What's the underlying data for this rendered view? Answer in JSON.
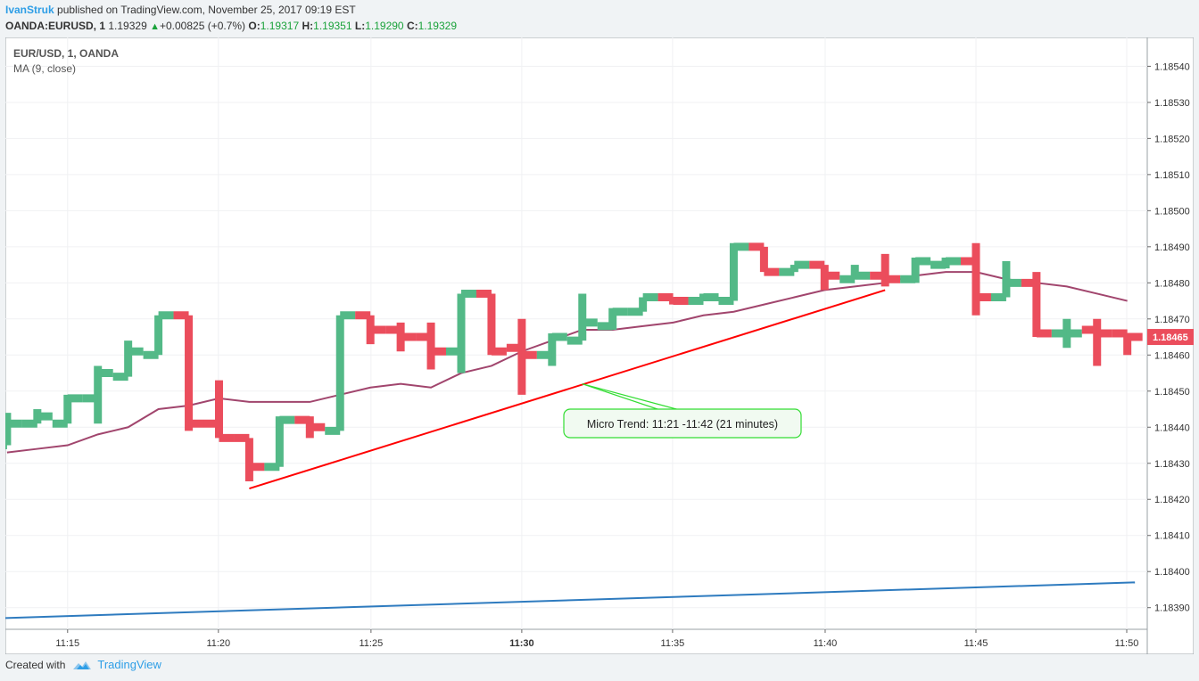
{
  "header": {
    "author": "IvanStruk",
    "published": "published on TradingView.com, November 25, 2017 09:19 EST",
    "symbol": "OANDA:EURUSD, 1",
    "last": "1.19329",
    "change": "+0.00825 (+0.7%)",
    "o_label": "O:",
    "o_value": "1.19317",
    "h_label": "H:",
    "h_value": "1.19351",
    "l_label": "L:",
    "l_value": "1.19290",
    "c_label": "C:",
    "c_value": "1.19329"
  },
  "legend": {
    "series_title": "EUR/USD, 1, OANDA",
    "indicator": "MA (9, close)"
  },
  "footer": {
    "created_with": "Created with",
    "brand": "TradingView"
  },
  "colors": {
    "up": "#53b987",
    "down": "#eb4d5c",
    "ma": "#a1456d",
    "trend": "#ff0000",
    "blue_line": "#2e7bbf",
    "callout": "#33dd33"
  },
  "chart_data": {
    "type": "ohlc",
    "x_ticks": [
      {
        "t": 11.25,
        "label": "11:15"
      },
      {
        "t": 11.333,
        "label": "11:20"
      },
      {
        "t": 11.417,
        "label": "11:25"
      },
      {
        "t": 11.5,
        "label": "11:30"
      },
      {
        "t": 11.583,
        "label": "11:35"
      },
      {
        "t": 11.667,
        "label": "11:40"
      },
      {
        "t": 11.75,
        "label": "11:45"
      },
      {
        "t": 11.833,
        "label": "11:50"
      }
    ],
    "y_ticks": [
      "1.18540",
      "1.18530",
      "1.18520",
      "1.18510",
      "1.18500",
      "1.18490",
      "1.18480",
      "1.18470",
      "1.18460",
      "1.18450",
      "1.18440",
      "1.18430",
      "1.18420",
      "1.18410",
      "1.18400",
      "1.18390"
    ],
    "ylim": [
      1.18384,
      1.18548
    ],
    "current_price": "1.18465",
    "bars": [
      {
        "m": 13,
        "o": 1.18435,
        "h": 1.18444,
        "l": 1.18435,
        "c": 1.18441
      },
      {
        "m": 14,
        "o": 1.18441,
        "h": 1.18445,
        "l": 1.18441,
        "c": 1.18443
      },
      {
        "m": 15,
        "o": 1.18441,
        "h": 1.18449,
        "l": 1.18441,
        "c": 1.18448
      },
      {
        "m": 16,
        "o": 1.18448,
        "h": 1.18457,
        "l": 1.18441,
        "c": 1.18455
      },
      {
        "m": 17,
        "o": 1.18454,
        "h": 1.18464,
        "l": 1.18454,
        "c": 1.18461
      },
      {
        "m": 18,
        "o": 1.1846,
        "h": 1.18471,
        "l": 1.1846,
        "c": 1.18471
      },
      {
        "m": 19,
        "o": 1.18471,
        "h": 1.18471,
        "l": 1.18439,
        "c": 1.18441
      },
      {
        "m": 20,
        "o": 1.18441,
        "h": 1.18453,
        "l": 1.18437,
        "c": 1.18437
      },
      {
        "m": 21,
        "o": 1.18437,
        "h": 1.18437,
        "l": 1.18425,
        "c": 1.18429
      },
      {
        "m": 22,
        "o": 1.18429,
        "h": 1.18443,
        "l": 1.18429,
        "c": 1.18442
      },
      {
        "m": 23,
        "o": 1.18442,
        "h": 1.18443,
        "l": 1.18437,
        "c": 1.1844
      },
      {
        "m": 24,
        "o": 1.18439,
        "h": 1.18471,
        "l": 1.18439,
        "c": 1.18471
      },
      {
        "m": 25,
        "o": 1.18471,
        "h": 1.18471,
        "l": 1.18463,
        "c": 1.18467
      },
      {
        "m": 26,
        "o": 1.18467,
        "h": 1.18469,
        "l": 1.18461,
        "c": 1.18465
      },
      {
        "m": 27,
        "o": 1.18465,
        "h": 1.18469,
        "l": 1.18456,
        "c": 1.18461
      },
      {
        "m": 28,
        "o": 1.18461,
        "h": 1.18477,
        "l": 1.18455,
        "c": 1.18477
      },
      {
        "m": 29,
        "o": 1.18477,
        "h": 1.18477,
        "l": 1.1846,
        "c": 1.18461
      },
      {
        "m": 30,
        "o": 1.18462,
        "h": 1.1847,
        "l": 1.18449,
        "c": 1.1846
      },
      {
        "m": 31,
        "o": 1.1846,
        "h": 1.18466,
        "l": 1.18457,
        "c": 1.18465
      },
      {
        "m": 32,
        "o": 1.18464,
        "h": 1.18477,
        "l": 1.18464,
        "c": 1.18469
      },
      {
        "m": 33,
        "o": 1.18468,
        "h": 1.18473,
        "l": 1.18467,
        "c": 1.18472
      },
      {
        "m": 34,
        "o": 1.18472,
        "h": 1.18476,
        "l": 1.18472,
        "c": 1.18476
      },
      {
        "m": 35,
        "o": 1.18476,
        "h": 1.18476,
        "l": 1.18474,
        "c": 1.18475
      },
      {
        "m": 36,
        "o": 1.18475,
        "h": 1.18477,
        "l": 1.18475,
        "c": 1.18476
      },
      {
        "m": 37,
        "o": 1.18475,
        "h": 1.18491,
        "l": 1.18475,
        "c": 1.1849
      },
      {
        "m": 38,
        "o": 1.1849,
        "h": 1.1849,
        "l": 1.18483,
        "c": 1.18483
      },
      {
        "m": 39,
        "o": 1.18483,
        "h": 1.18485,
        "l": 1.18483,
        "c": 1.18485
      },
      {
        "m": 40,
        "o": 1.18485,
        "h": 1.18485,
        "l": 1.18478,
        "c": 1.18482
      },
      {
        "m": 41,
        "o": 1.18481,
        "h": 1.18485,
        "l": 1.18481,
        "c": 1.18482
      },
      {
        "m": 42,
        "o": 1.18482,
        "h": 1.18488,
        "l": 1.18479,
        "c": 1.18481
      },
      {
        "m": 43,
        "o": 1.18481,
        "h": 1.18487,
        "l": 1.1848,
        "c": 1.18486
      },
      {
        "m": 44,
        "o": 1.18485,
        "h": 1.18487,
        "l": 1.18484,
        "c": 1.18486
      },
      {
        "m": 45,
        "o": 1.18486,
        "h": 1.18491,
        "l": 1.18471,
        "c": 1.18476
      },
      {
        "m": 46,
        "o": 1.18476,
        "h": 1.18486,
        "l": 1.18476,
        "c": 1.1848
      },
      {
        "m": 47,
        "o": 1.1848,
        "h": 1.18483,
        "l": 1.18465,
        "c": 1.18466
      },
      {
        "m": 48,
        "o": 1.18466,
        "h": 1.1847,
        "l": 1.18462,
        "c": 1.18466
      },
      {
        "m": 49,
        "o": 1.18467,
        "h": 1.1847,
        "l": 1.18457,
        "c": 1.18466
      },
      {
        "m": 50,
        "o": 1.18466,
        "h": 1.18466,
        "l": 1.1846,
        "c": 1.18465
      }
    ],
    "ma": [
      [
        13,
        1.18433
      ],
      [
        14,
        1.18434
      ],
      [
        15,
        1.18435
      ],
      [
        16,
        1.18438
      ],
      [
        17,
        1.1844
      ],
      [
        18,
        1.18445
      ],
      [
        19,
        1.18446
      ],
      [
        20,
        1.18448
      ],
      [
        21,
        1.18447
      ],
      [
        22,
        1.18447
      ],
      [
        23,
        1.18447
      ],
      [
        24,
        1.18449
      ],
      [
        25,
        1.18451
      ],
      [
        26,
        1.18452
      ],
      [
        27,
        1.18451
      ],
      [
        28,
        1.18455
      ],
      [
        29,
        1.18457
      ],
      [
        30,
        1.18461
      ],
      [
        31,
        1.18464
      ],
      [
        32,
        1.18467
      ],
      [
        33,
        1.18467
      ],
      [
        34,
        1.18468
      ],
      [
        35,
        1.18469
      ],
      [
        36,
        1.18471
      ],
      [
        37,
        1.18472
      ],
      [
        38,
        1.18474
      ],
      [
        39,
        1.18476
      ],
      [
        40,
        1.18478
      ],
      [
        41,
        1.18479
      ],
      [
        42,
        1.1848
      ],
      [
        43,
        1.18482
      ],
      [
        44,
        1.18483
      ],
      [
        45,
        1.18483
      ],
      [
        46,
        1.18481
      ],
      [
        47,
        1.1848
      ],
      [
        48,
        1.18479
      ],
      [
        49,
        1.18477
      ],
      [
        50,
        1.18475
      ]
    ],
    "trend_line": [
      [
        21,
        1.18423
      ],
      [
        42,
        1.18478
      ]
    ],
    "blue_line": [
      [
        12.5,
        1.18387
      ],
      [
        50.25,
        1.18397
      ]
    ],
    "callout": {
      "text": "Micro Trend: 11:21 -11:42 (21 minutes)",
      "anchor": [
        32,
        1.18452
      ]
    }
  }
}
